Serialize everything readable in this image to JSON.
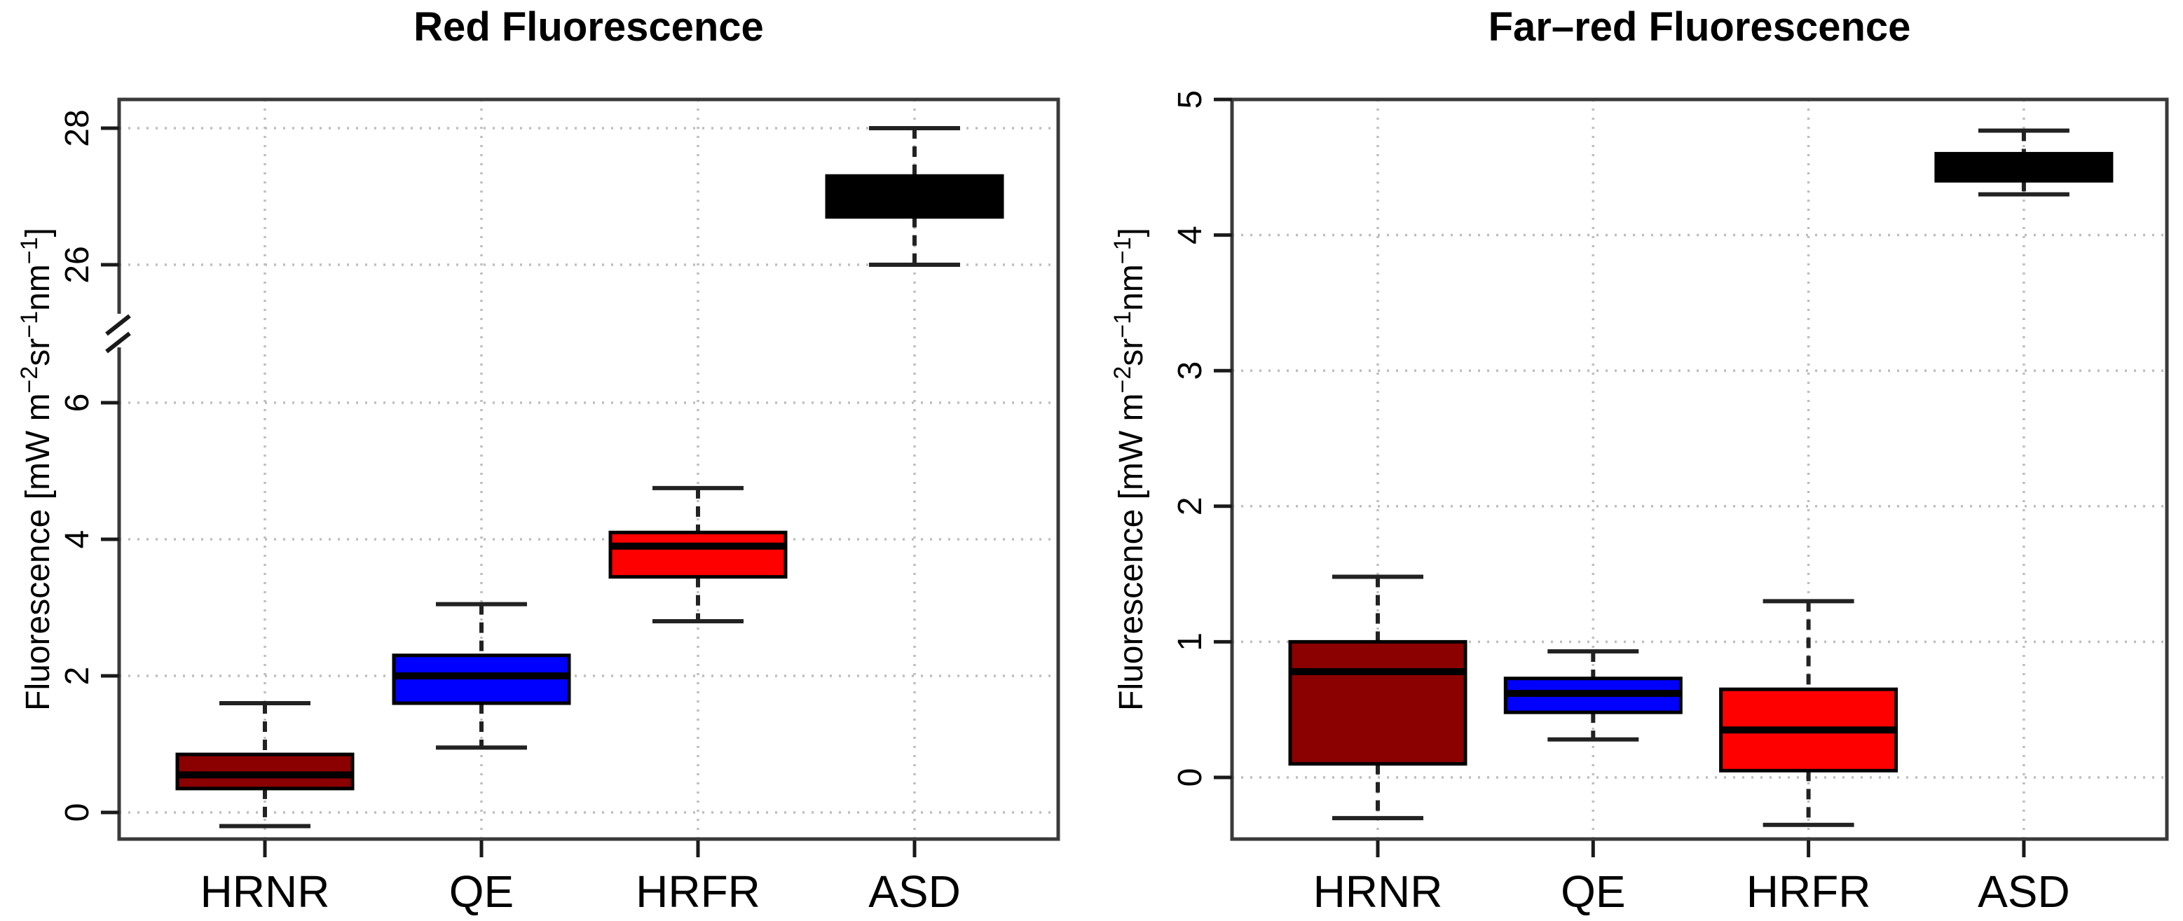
{
  "figure": {
    "background": "#ffffff",
    "frame_color": "#3a3a3a",
    "grid_color": "#bdbdbd",
    "text_color": "#000000",
    "box_border_color": "#000000",
    "whisker_color": "#222222"
  },
  "y_axis_label": {
    "text": "Fluorescence [mW m−2sr−1nm−1]",
    "parts": [
      {
        "text": "Fluorescence [mW m",
        "sup": false
      },
      {
        "text": "−2",
        "sup": true
      },
      {
        "text": "sr",
        "sup": false
      },
      {
        "text": "−1",
        "sup": true
      },
      {
        "text": "nm",
        "sup": false
      },
      {
        "text": "−1",
        "sup": true
      },
      {
        "text": "]",
        "sup": false
      }
    ]
  },
  "chart_data": [
    {
      "type": "boxplot",
      "title": "Red Fluorescence",
      "ylabel": "Fluorescence [mW m−2sr−1nm−1]",
      "xlabel": "",
      "categories": [
        "HRNR",
        "QE",
        "HRFR",
        "ASD"
      ],
      "grid": true,
      "y_ticks": [
        0,
        2,
        4,
        6,
        26,
        28
      ],
      "axis_break": {
        "between": [
          6,
          26
        ],
        "lower_ticks": [
          0,
          2,
          4,
          6
        ],
        "upper_ticks": [
          26,
          28
        ],
        "lower_range": [
          -0.4,
          7.4
        ],
        "upper_range": [
          25.6,
          28.4
        ]
      },
      "series": [
        {
          "label": "HRNR",
          "color": "#8b0000",
          "whisker_low": -0.2,
          "q1": 0.35,
          "median": 0.55,
          "q3": 0.85,
          "whisker_high": 1.6
        },
        {
          "label": "QE",
          "color": "#0000ff",
          "whisker_low": 0.95,
          "q1": 1.6,
          "median": 2.0,
          "q3": 2.3,
          "whisker_high": 3.05
        },
        {
          "label": "HRFR",
          "color": "#ff0000",
          "whisker_low": 2.8,
          "q1": 3.45,
          "median": 3.9,
          "q3": 4.1,
          "whisker_high": 4.75
        },
        {
          "label": "ASD",
          "color": "#000000",
          "whisker_low": 26.0,
          "q1": 26.7,
          "median": 27.0,
          "q3": 27.3,
          "whisker_high": 28.0
        }
      ]
    },
    {
      "type": "boxplot",
      "title": "Far–red Fluorescence",
      "ylabel": "Fluorescence [mW m−2sr−1nm−1]",
      "xlabel": "",
      "categories": [
        "HRNR",
        "QE",
        "HRFR",
        "ASD"
      ],
      "grid": true,
      "y_ticks": [
        0,
        1,
        2,
        3,
        4,
        5
      ],
      "ylim": [
        -0.45,
        5.0
      ],
      "series": [
        {
          "label": "HRNR",
          "color": "#8b0000",
          "whisker_low": -0.3,
          "q1": 0.1,
          "median": 0.78,
          "q3": 1.0,
          "whisker_high": 1.48
        },
        {
          "label": "QE",
          "color": "#0000ff",
          "whisker_low": 0.28,
          "q1": 0.48,
          "median": 0.62,
          "q3": 0.73,
          "whisker_high": 0.93
        },
        {
          "label": "HRFR",
          "color": "#ff0000",
          "whisker_low": -0.35,
          "q1": 0.05,
          "median": 0.35,
          "q3": 0.65,
          "whisker_high": 1.3
        },
        {
          "label": "ASD",
          "color": "#000000",
          "whisker_low": 4.3,
          "q1": 4.4,
          "median": 4.5,
          "q3": 4.6,
          "whisker_high": 4.77
        }
      ]
    }
  ]
}
